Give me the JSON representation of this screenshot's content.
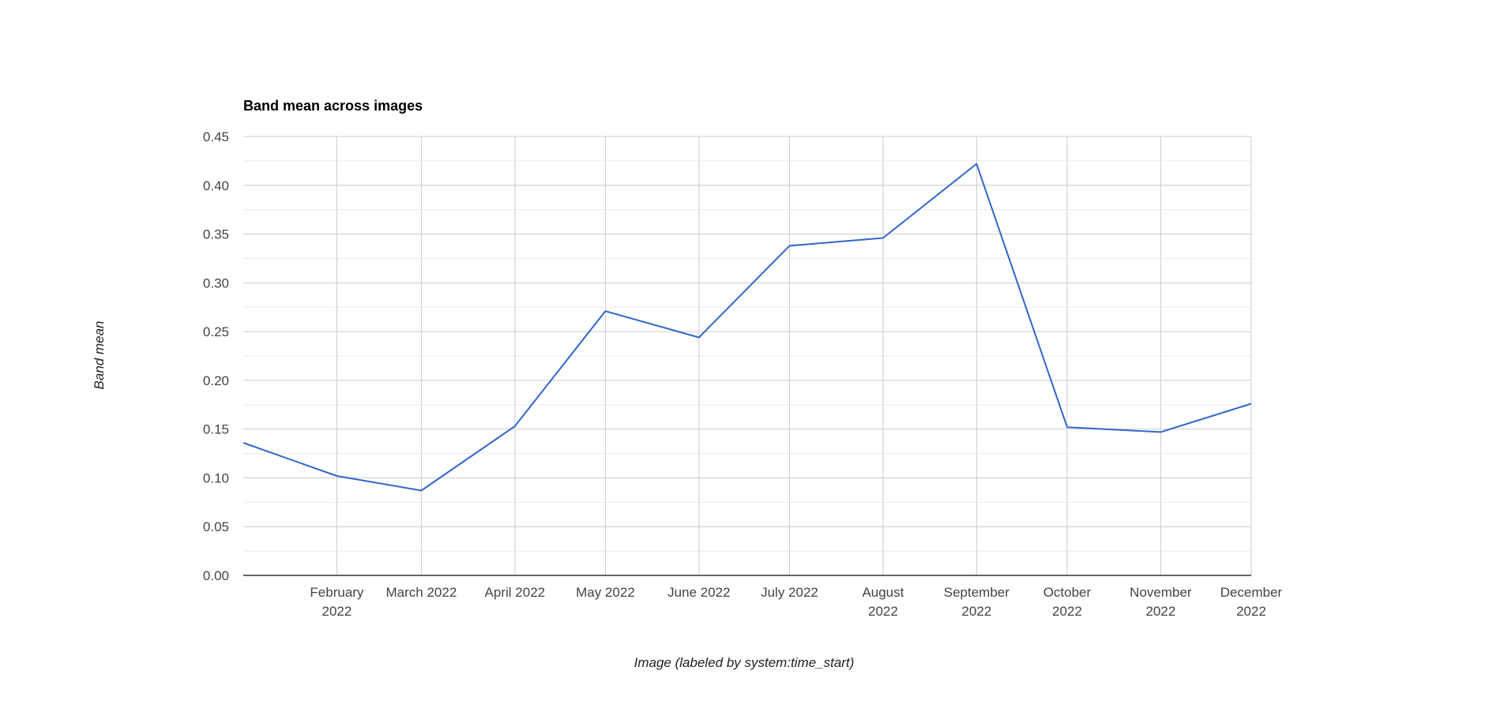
{
  "chart_data": {
    "type": "line",
    "title": "Band mean across images",
    "xlabel": "Image (labeled by system:time_start)",
    "ylabel": "Band mean",
    "ylim": [
      0,
      0.45
    ],
    "yticks": [
      "0.00",
      "0.05",
      "0.10",
      "0.15",
      "0.20",
      "0.25",
      "0.30",
      "0.35",
      "0.40",
      "0.45"
    ],
    "x": [
      "2022-01-01",
      "2022-02-01",
      "2022-03-01",
      "2022-04-01",
      "2022-05-01",
      "2022-06-01",
      "2022-07-01",
      "2022-08-01",
      "2022-09-01",
      "2022-10-01",
      "2022-11-01",
      "2022-12-01"
    ],
    "xtick_labels": [
      [
        "February",
        "2022"
      ],
      [
        "March 2022"
      ],
      [
        "April 2022"
      ],
      [
        "May 2022"
      ],
      [
        "June 2022"
      ],
      [
        "July 2022"
      ],
      [
        "August",
        "2022"
      ],
      [
        "September",
        "2022"
      ],
      [
        "October",
        "2022"
      ],
      [
        "November",
        "2022"
      ],
      [
        "December",
        "2022"
      ]
    ],
    "series": [
      {
        "values": [
          0.136,
          0.102,
          0.087,
          0.153,
          0.271,
          0.244,
          0.338,
          0.346,
          0.422,
          0.152,
          0.147,
          0.176
        ],
        "color": "#3366cc"
      }
    ],
    "grid": true,
    "legend": "none"
  }
}
